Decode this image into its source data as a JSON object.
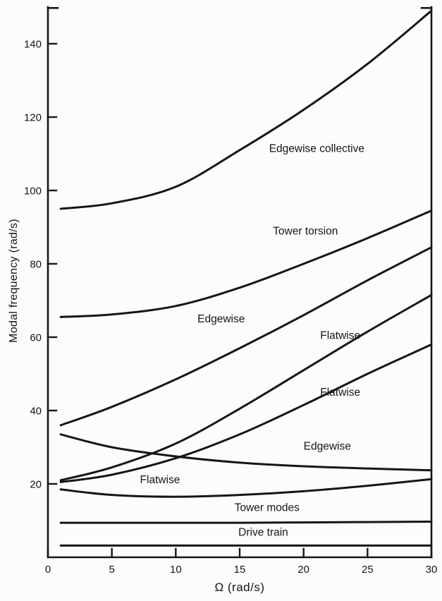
{
  "figure": {
    "background": "#fcfcfa",
    "ink": "#161616"
  },
  "chart_data": {
    "type": "line",
    "title": "",
    "xlabel": "Ω (rad/s)",
    "ylabel": "Modal frequency (rad/s)",
    "xlim": [
      0,
      30
    ],
    "ylim": [
      0,
      150
    ],
    "xticks": [
      0,
      5,
      10,
      15,
      20,
      25,
      30
    ],
    "yticks": [
      20,
      40,
      60,
      80,
      100,
      120,
      140
    ],
    "grid": false,
    "legend": "none",
    "x": [
      1,
      5,
      10,
      15,
      20,
      25,
      30
    ],
    "series": [
      {
        "name": "edgewise-collective",
        "values": [
          95,
          96.5,
          101,
          111,
          122,
          134.5,
          149
        ]
      },
      {
        "name": "tower-torsion",
        "values": [
          65.5,
          66.2,
          68.5,
          73.5,
          80,
          87,
          94.5
        ]
      },
      {
        "name": "edgewise-upper",
        "values": [
          36,
          41,
          48.5,
          57,
          66,
          75.5,
          84.5
        ]
      },
      {
        "name": "flatwise-upper",
        "values": [
          21,
          24.5,
          31,
          40.5,
          51,
          61.5,
          71.5
        ]
      },
      {
        "name": "flatwise-middle",
        "values": [
          20.5,
          22.5,
          27,
          33.5,
          41.5,
          50,
          58
        ]
      },
      {
        "name": "edgewise-lower",
        "values": [
          33.5,
          30,
          27.5,
          25.8,
          24.8,
          24.2,
          23.7
        ]
      },
      {
        "name": "flatwise-lower",
        "values": [
          18.5,
          17,
          16.5,
          17,
          18,
          19.5,
          21.3
        ]
      },
      {
        "name": "tower-modes",
        "values": [
          9.4,
          9.4,
          9.4,
          9.4,
          9.5,
          9.6,
          9.7
        ]
      },
      {
        "name": "drive-train",
        "values": [
          3.2,
          3.2,
          3.2,
          3.2,
          3.2,
          3.2,
          3.2
        ]
      }
    ],
    "annotations": [
      {
        "text": "Edgewise collective",
        "x": 17.3,
        "y": 110.5
      },
      {
        "text": "Tower torsion",
        "x": 17.6,
        "y": 88
      },
      {
        "text": "Edgewise",
        "x": 11.7,
        "y": 64
      },
      {
        "text": "Flatwise",
        "x": 21.3,
        "y": 59.5
      },
      {
        "text": "Flatwise",
        "x": 21.3,
        "y": 44
      },
      {
        "text": "Edgewise",
        "x": 20.0,
        "y": 29.3
      },
      {
        "text": "Flatwise",
        "x": 7.2,
        "y": 20.2
      },
      {
        "text": "Tower modes",
        "x": 14.6,
        "y": 12.6
      },
      {
        "text": "Drive train",
        "x": 14.9,
        "y": 5.9
      }
    ]
  }
}
